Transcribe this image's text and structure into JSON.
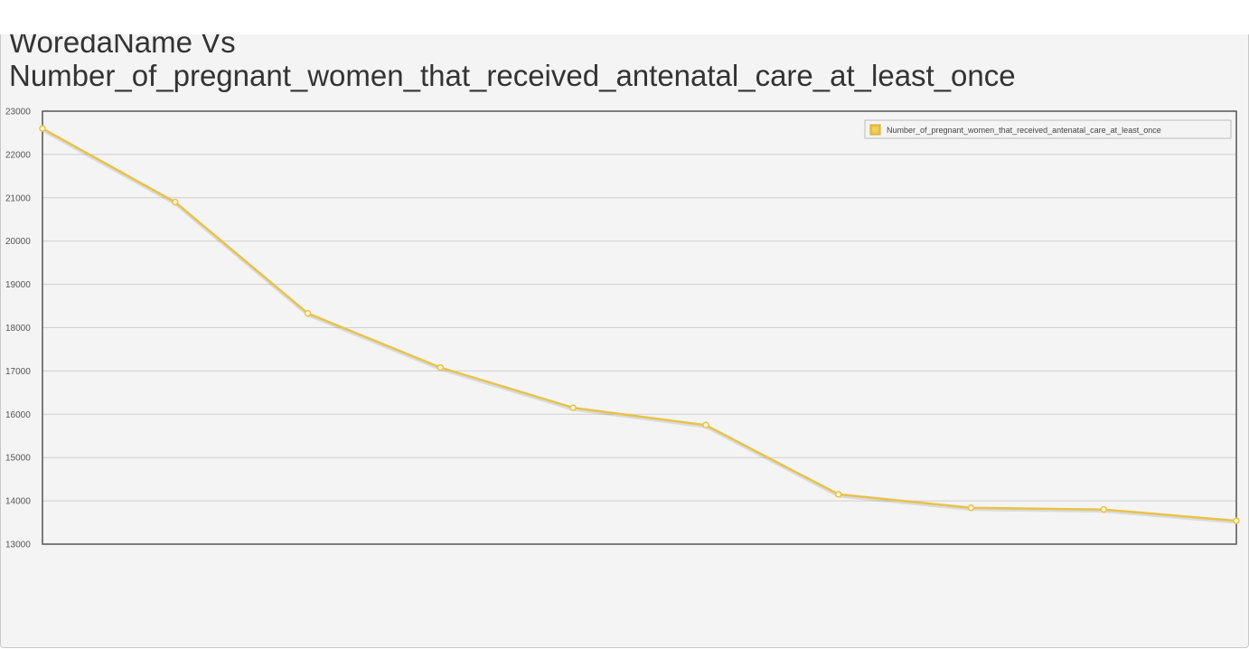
{
  "chart_data": {
    "type": "line",
    "title_lines": [
      "WoredaName Vs",
      "Number_of_pregnant_women_that_received_antenatal_care_at_least_once"
    ],
    "xlabel": "",
    "ylabel": "",
    "ylim": [
      13000,
      23000
    ],
    "yticks": [
      13000,
      14000,
      15000,
      16000,
      17000,
      18000,
      19000,
      20000,
      21000,
      22000,
      23000
    ],
    "grid": true,
    "legend_position": "top-right",
    "series": [
      {
        "name": "Number_of_pregnant_women_that_received_antenatal_care_at_least_once",
        "color": "#e8c24a",
        "values": [
          22600,
          20900,
          18330,
          17080,
          16150,
          15750,
          14150,
          13840,
          13800,
          13540
        ]
      }
    ]
  }
}
